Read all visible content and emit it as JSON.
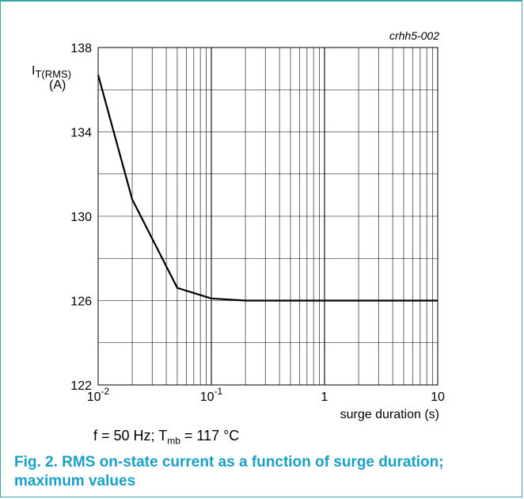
{
  "chart_data": {
    "type": "line",
    "code": "crhh5-002",
    "x_scale": "log",
    "xlim": [
      0.01,
      10
    ],
    "ylim": [
      122,
      138
    ],
    "grid": true,
    "xlabel": "surge duration (s)",
    "ylabel": {
      "main": "I",
      "sub": "T(RMS)",
      "unit": "(A)"
    },
    "x_ticks": [
      {
        "base": "10",
        "exp": "-2"
      },
      {
        "base": "10",
        "exp": "-1"
      },
      {
        "base": "1",
        "exp": ""
      },
      {
        "base": "10",
        "exp": ""
      }
    ],
    "y_ticks": [
      "122",
      "126",
      "130",
      "134",
      "138"
    ],
    "series": [
      {
        "x": [
          0.01,
          0.02,
          0.05,
          0.1,
          0.2,
          0.5,
          1,
          2,
          5,
          10
        ],
        "y": [
          136.7,
          130.8,
          126.6,
          126.1,
          126.0,
          126.0,
          126.0,
          126.0,
          126.0,
          126.0
        ]
      }
    ]
  },
  "condition": {
    "prefix": "f = 50 Hz; T",
    "sub": "mb",
    "suffix": " = 117 °C"
  },
  "caption": "Fig. 2. RMS on-state current as a function of surge duration; maximum values"
}
